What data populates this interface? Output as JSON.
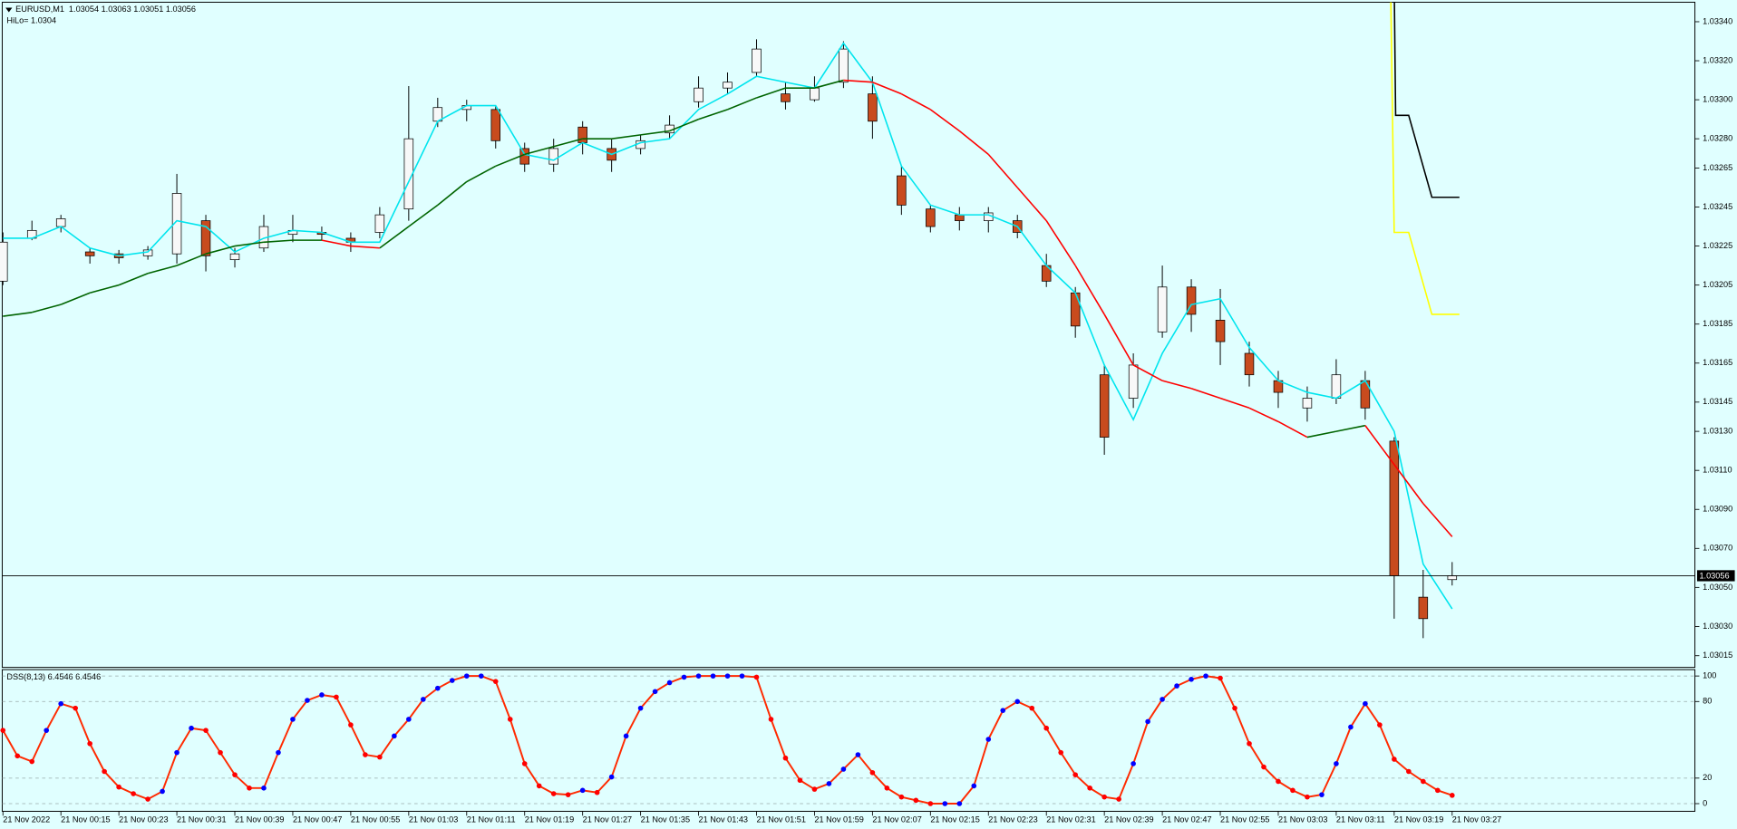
{
  "chart_data": [
    {
      "type": "candlestick",
      "title": "EURUSD,M1",
      "ohlc_text": "1.03054 1.03063 1.03051 1.03056",
      "subtitle": "HiLo= 1.0304",
      "xlim": [
        6.9,
        240.5
      ],
      "ylim": [
        1.03009,
        1.0335
      ],
      "yticks": [
        {
          "value": 1.0334,
          "label": "1.03340"
        },
        {
          "value": 1.0332,
          "label": "1.03320"
        },
        {
          "value": 1.033,
          "label": "1.03300"
        },
        {
          "value": 1.0328,
          "label": "1.03280"
        },
        1.03265,
        1.03245,
        1.03225,
        1.03205,
        1.03185,
        1.03165,
        1.03145,
        {
          "value": 1.0313,
          "label": "1.03130"
        },
        {
          "value": 1.0311,
          "label": "1.03110"
        },
        {
          "value": 1.0309,
          "label": "1.03090"
        },
        {
          "value": 1.0307,
          "label": "1.03070"
        },
        {
          "value": 1.0305,
          "label": "1.03050"
        },
        {
          "value": 1.0303,
          "label": "1.03030"
        },
        1.03015
      ],
      "current_price": {
        "value": 1.03056,
        "label": "1.03056"
      },
      "up_color": "#f8f8f8",
      "down_color": "#c84b1e",
      "x": [
        7,
        11,
        15,
        19,
        23,
        27,
        31,
        35,
        39,
        43,
        47,
        51,
        55,
        59,
        63,
        67,
        71,
        75,
        79,
        83,
        87,
        91,
        95,
        99,
        103,
        107,
        111,
        115,
        119,
        123,
        127,
        131,
        135,
        139,
        143,
        147,
        151,
        155,
        159,
        163,
        167,
        171,
        175,
        179,
        183,
        187,
        191,
        195,
        199,
        203,
        207
      ],
      "open": [
        1.03207,
        1.03229,
        1.03235,
        1.03222,
        1.03221,
        1.0322,
        1.03221,
        1.03238,
        1.03218,
        1.03224,
        1.03231,
        1.03232,
        1.03229,
        1.03232,
        1.03244,
        1.03289,
        1.03295,
        1.03295,
        1.03275,
        1.03267,
        1.03286,
        1.03275,
        1.03275,
        1.03283,
        1.03299,
        1.03306,
        1.03314,
        1.03303,
        1.033,
        1.03309,
        1.03303,
        1.03261,
        1.03244,
        1.03241,
        1.03238,
        1.03238,
        1.03215,
        1.03201,
        1.03159,
        1.03147,
        1.03181,
        1.03204,
        1.03187,
        1.0317,
        1.03156,
        1.03142,
        1.03147,
        1.03156,
        1.03125,
        1.03045,
        1.03054
      ],
      "high": [
        1.03232,
        1.03238,
        1.03241,
        1.03224,
        1.03223,
        1.03225,
        1.03262,
        1.03241,
        1.03224,
        1.03241,
        1.03241,
        1.03235,
        1.03232,
        1.03245,
        1.03307,
        1.03301,
        1.033,
        1.03297,
        1.03278,
        1.0328,
        1.03289,
        1.0328,
        1.03282,
        1.03292,
        1.03312,
        1.03314,
        1.03331,
        1.03309,
        1.03312,
        1.0333,
        1.03312,
        1.03266,
        1.03246,
        1.03245,
        1.03245,
        1.03241,
        1.03221,
        1.03204,
        1.03164,
        1.0317,
        1.03215,
        1.03208,
        1.03203,
        1.03176,
        1.03161,
        1.03153,
        1.03167,
        1.03161,
        1.03127,
        1.03059,
        1.03063
      ],
      "low": [
        1.03205,
        1.03228,
        1.03232,
        1.03216,
        1.03216,
        1.03218,
        1.03216,
        1.03212,
        1.03214,
        1.03222,
        1.03227,
        1.03228,
        1.03222,
        1.03229,
        1.03238,
        1.03286,
        1.03289,
        1.03275,
        1.03263,
        1.03263,
        1.03272,
        1.03263,
        1.03272,
        1.0328,
        1.03296,
        1.03303,
        1.03312,
        1.03295,
        1.03299,
        1.03306,
        1.0328,
        1.03241,
        1.03232,
        1.03233,
        1.03232,
        1.03229,
        1.03204,
        1.03178,
        1.03118,
        1.03142,
        1.03178,
        1.03181,
        1.03164,
        1.03153,
        1.03142,
        1.03135,
        1.03144,
        1.03136,
        1.03034,
        1.03024,
        1.03051
      ],
      "close": [
        1.03227,
        1.03233,
        1.03239,
        1.0322,
        1.03219,
        1.03223,
        1.03252,
        1.0322,
        1.03221,
        1.03235,
        1.03233,
        1.03231,
        1.03227,
        1.03241,
        1.0328,
        1.03296,
        1.03297,
        1.03279,
        1.03267,
        1.03275,
        1.03278,
        1.03269,
        1.03279,
        1.03287,
        1.03306,
        1.03309,
        1.03326,
        1.03299,
        1.03306,
        1.03326,
        1.03289,
        1.03246,
        1.03235,
        1.03238,
        1.03242,
        1.03232,
        1.03207,
        1.03184,
        1.03127,
        1.03164,
        1.03204,
        1.0319,
        1.03176,
        1.03159,
        1.0315,
        1.03147,
        1.03159,
        1.03142,
        1.03056,
        1.03034,
        1.03056
      ],
      "lines": [
        {
          "color": "#00e5ee",
          "values": [
            1.03229,
            1.03229,
            1.03235,
            1.03224,
            1.0322,
            1.03222,
            1.03238,
            1.03235,
            1.03222,
            1.03229,
            1.03233,
            1.03232,
            1.03227,
            1.03227,
            1.03258,
            1.03289,
            1.03297,
            1.03297,
            1.03272,
            1.03269,
            1.03278,
            1.03272,
            1.03278,
            1.0328,
            1.03295,
            1.03303,
            1.03312,
            1.03309,
            1.03306,
            1.03329,
            1.03309,
            1.03266,
            1.03246,
            1.03241,
            1.03241,
            1.03235,
            1.03215,
            1.03201,
            1.03164,
            1.03136,
            1.0317,
            1.03195,
            1.03198,
            1.03173,
            1.03156,
            1.0315,
            1.03147,
            1.03156,
            1.0313,
            1.03062,
            1.03039
          ]
        },
        {
          "up_color": "#006400",
          "down_color": "#ff0000",
          "values": [
            1.03189,
            1.03191,
            1.03195,
            1.03201,
            1.03205,
            1.03211,
            1.03215,
            1.03221,
            1.03225,
            1.03227,
            1.03228,
            1.03228,
            1.03225,
            1.03224,
            1.03235,
            1.03246,
            1.03258,
            1.03266,
            1.03272,
            1.03276,
            1.0328,
            1.0328,
            1.03282,
            1.03284,
            1.0329,
            1.03295,
            1.03301,
            1.03306,
            1.03306,
            1.0331,
            1.03309,
            1.03303,
            1.03295,
            1.03284,
            1.03272,
            1.03255,
            1.03238,
            1.03215,
            1.0319,
            1.03164,
            1.03156,
            1.03152,
            1.03147,
            1.03142,
            1.03135,
            1.03127,
            1.0313,
            1.03133,
            1.03113,
            1.03093,
            1.03076
          ]
        },
        {
          "color": "#000000",
          "x": [
            199,
            199.2,
            201,
            204.2,
            208
          ],
          "values": [
            1.0336,
            1.03292,
            1.03292,
            1.0325,
            1.0325
          ]
        },
        {
          "color": "#ffff00",
          "x": [
            198.5,
            199,
            201,
            204.2,
            208
          ],
          "values": [
            1.0336,
            1.03232,
            1.03232,
            1.0319,
            1.0319
          ]
        }
      ]
    },
    {
      "type": "line",
      "title": "DSS(8,13) 6.4546 6.4546",
      "xlim": [
        6.9,
        240.5
      ],
      "ylim": [
        -6,
        105
      ],
      "yticks": [
        100,
        80,
        20,
        0
      ],
      "grid": true,
      "color": "#ff2a00",
      "rising_color": "#0000ff",
      "falling_color": "#ff0000",
      "xticks": [
        {
          "value": 7,
          "label": "21 Nov 2022"
        },
        {
          "value": 15,
          "label": "21 Nov 00:15"
        },
        {
          "value": 23,
          "label": "21 Nov 00:23"
        },
        {
          "value": 31,
          "label": "21 Nov 00:31"
        },
        {
          "value": 39,
          "label": "21 Nov 00:39"
        },
        {
          "value": 47,
          "label": "21 Nov 00:47"
        },
        {
          "value": 55,
          "label": "21 Nov 00:55"
        },
        {
          "value": 63,
          "label": "21 Nov 01:03"
        },
        {
          "value": 71,
          "label": "21 Nov 01:11"
        },
        {
          "value": 79,
          "label": "21 Nov 01:19"
        },
        {
          "value": 87,
          "label": "21 Nov 01:27"
        },
        {
          "value": 95,
          "label": "21 Nov 01:35"
        },
        {
          "value": 103,
          "label": "21 Nov 01:43"
        },
        {
          "value": 111,
          "label": "21 Nov 01:51"
        },
        {
          "value": 119,
          "label": "21 Nov 01:59"
        },
        {
          "value": 127,
          "label": "21 Nov 02:07"
        },
        {
          "value": 135,
          "label": "21 Nov 02:15"
        },
        {
          "value": 143,
          "label": "21 Nov 02:23"
        },
        {
          "value": 151,
          "label": "21 Nov 02:31"
        },
        {
          "value": 159,
          "label": "21 Nov 02:39"
        },
        {
          "value": 167,
          "label": "21 Nov 02:47"
        },
        {
          "value": 175,
          "label": "21 Nov 02:55"
        },
        {
          "value": 183,
          "label": "21 Nov 03:03"
        },
        {
          "value": 191,
          "label": "21 Nov 03:11"
        },
        {
          "value": 199,
          "label": "21 Nov 03:19"
        },
        {
          "value": 207,
          "label": "21 Nov 03:27"
        }
      ],
      "x": [
        7,
        9,
        11,
        13,
        15,
        17,
        19,
        21,
        23,
        25,
        27,
        29,
        31,
        33,
        35,
        37,
        39,
        41,
        43,
        45,
        47,
        49,
        51,
        53,
        55,
        57,
        59,
        61,
        63,
        65,
        67,
        69,
        71,
        73,
        75,
        77,
        79,
        81,
        83,
        85,
        87,
        89,
        91,
        93,
        95,
        97,
        99,
        101,
        103,
        105,
        107,
        109,
        111,
        113,
        115,
        117,
        119,
        121,
        123,
        125,
        127,
        129,
        131,
        133,
        135,
        137,
        139,
        141,
        143,
        145,
        147,
        149,
        151,
        153,
        155,
        157,
        159,
        161,
        163,
        165,
        167,
        169,
        171,
        173,
        175,
        177,
        179,
        181,
        183,
        185,
        187,
        189,
        191,
        193,
        195,
        197,
        199,
        201,
        203,
        205,
        207
      ],
      "values": [
        57.4,
        37.4,
        33.0,
        57.4,
        78.3,
        74.8,
        47.0,
        25.2,
        13.0,
        7.8,
        3.5,
        9.6,
        40.0,
        59.1,
        57.4,
        40.0,
        22.6,
        12.2,
        12.2,
        40.0,
        66.1,
        80.9,
        85.2,
        83.5,
        61.7,
        38.3,
        36.5,
        53.0,
        66.1,
        81.7,
        90.4,
        96.5,
        100,
        100,
        95.7,
        66.1,
        31.3,
        13.9,
        7.8,
        7.0,
        10.4,
        8.7,
        20.9,
        53.0,
        74.8,
        87.8,
        94.8,
        99.1,
        100,
        100,
        100,
        100,
        99.1,
        66.1,
        35.7,
        18.3,
        11.3,
        15.7,
        27.0,
        38.3,
        24.3,
        12.2,
        5.2,
        2.6,
        0,
        0,
        0,
        13.9,
        50.4,
        73.0,
        80.0,
        74.8,
        59.1,
        40.0,
        22.6,
        12.2,
        5.2,
        3.5,
        31.3,
        64.3,
        81.7,
        92.2,
        97.4,
        100,
        98.3,
        74.8,
        47.0,
        28.7,
        17.4,
        10.4,
        5.2,
        7.0,
        31.3,
        60.0,
        78.3,
        61.7,
        34.8,
        25.2,
        17.4,
        10.4,
        6.5
      ]
    }
  ]
}
